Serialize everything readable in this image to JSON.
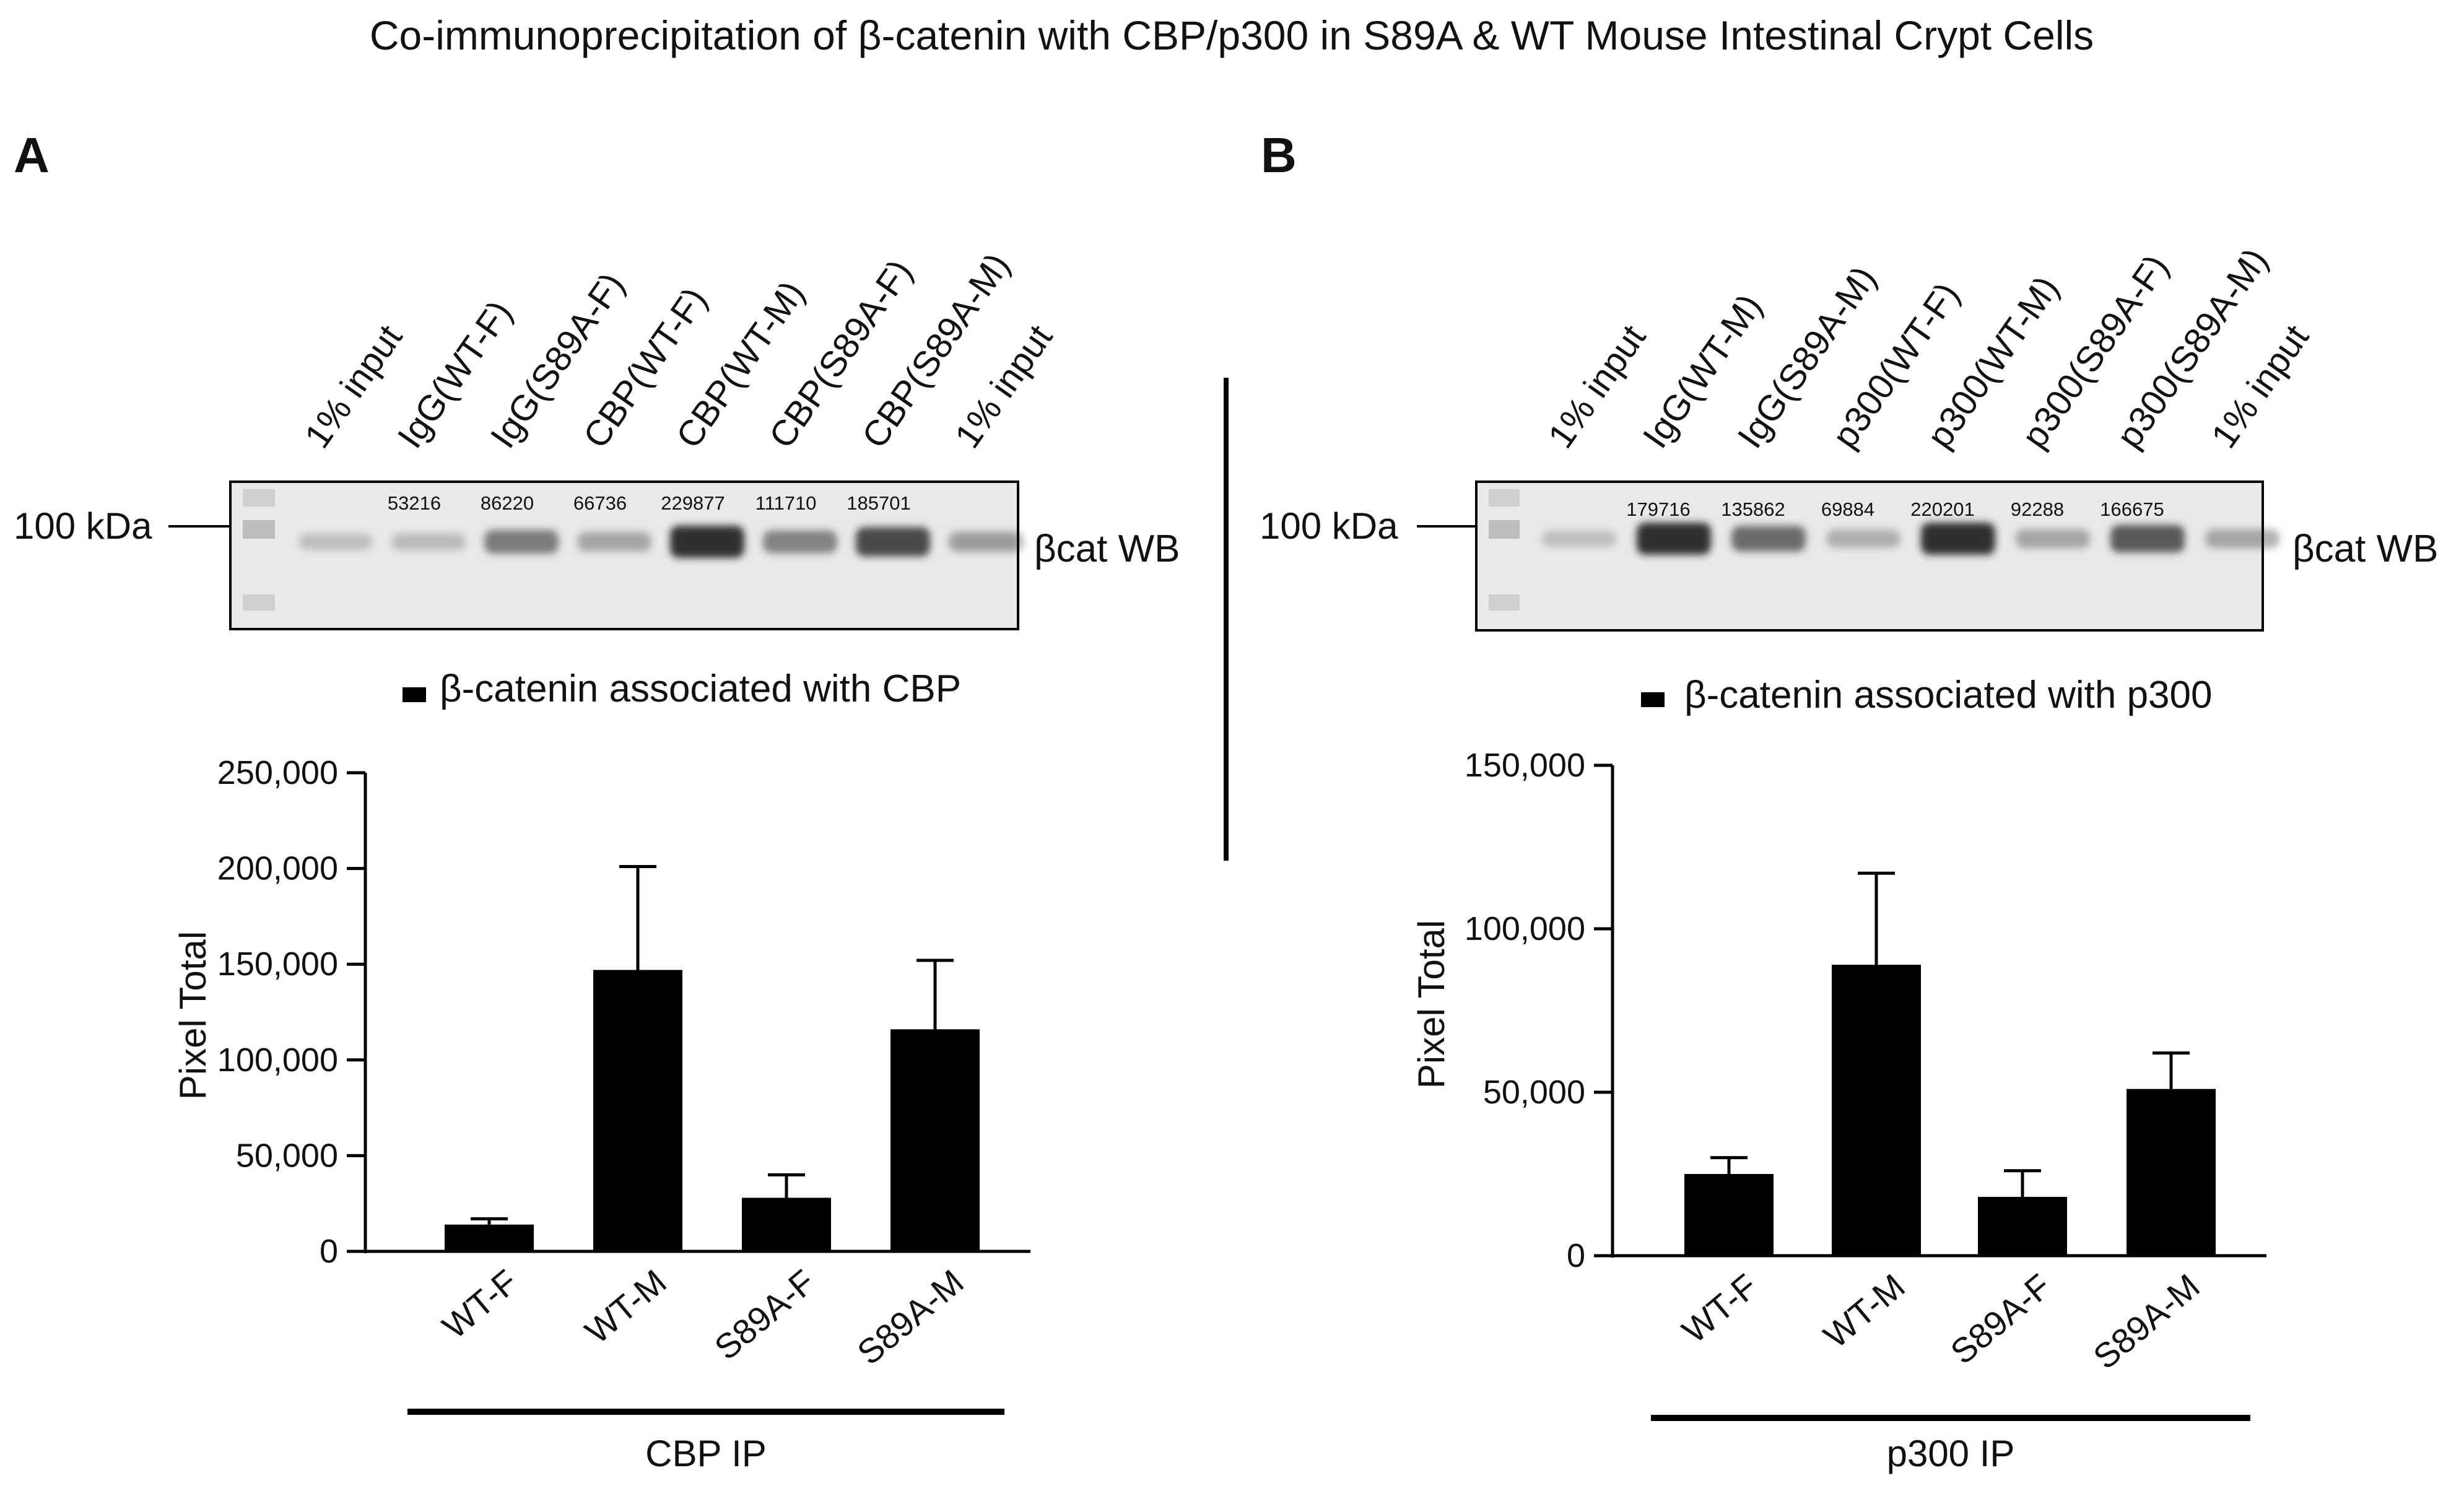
{
  "title": "Co-immunoprecipitation of β-catenin with CBP/p300 in S89A & WT Mouse Intestinal Crypt Cells",
  "colors": {
    "bar": "#000000",
    "blot_bg": "#e9e9e9",
    "band": "#222222"
  },
  "panels": [
    {
      "letter": "A",
      "lanes": [
        "1% input",
        "IgG(WT-F)",
        "IgG(S89A-F)",
        "CBP(WT-F)",
        "CBP(WT-M)",
        "CBP(S89A-F)",
        "CBP(S89A-M)",
        "1% input"
      ],
      "lane_values": [
        "53216",
        "86220",
        "66736",
        "229877",
        "111710",
        "185701"
      ],
      "band_intensity": [
        0.15,
        0.18,
        0.55,
        0.3,
        1.0,
        0.5,
        0.85,
        0.35
      ],
      "marker_label": "100 kDa",
      "wb_label": "βcat WB",
      "legend_label": "β-catenin associated with CBP",
      "ip_label": "CBP IP"
    },
    {
      "letter": "B",
      "lanes": [
        "1% input",
        "IgG(WT-M)",
        "IgG(S89A-M)",
        "p300(WT-F)",
        "p300(WT-M)",
        "p300(S89A-F)",
        "p300(S89A-M)",
        "1% input"
      ],
      "lane_values": [
        "179716",
        "135862",
        "69884",
        "220201",
        "92288",
        "166675"
      ],
      "band_intensity": [
        0.15,
        1.0,
        0.65,
        0.25,
        1.0,
        0.3,
        0.75,
        0.3
      ],
      "marker_label": "100 kDa",
      "wb_label": "βcat WB",
      "legend_label": "β-catenin associated with p300",
      "ip_label": "p300 IP"
    }
  ],
  "chart_data": [
    {
      "type": "bar",
      "title": "β-catenin associated with CBP",
      "categories": [
        "WT-F",
        "WT-M",
        "S89A-F",
        "S89A-M"
      ],
      "values": [
        14000,
        147000,
        28000,
        116000
      ],
      "errors": [
        3000,
        54000,
        12000,
        36000
      ],
      "ylabel": "Pixel  Total",
      "xlabel": "CBP IP",
      "ylim": [
        0,
        250000
      ],
      "yticks": [
        0,
        50000,
        100000,
        150000,
        200000,
        250000
      ],
      "ytick_labels": [
        "0",
        "50,000",
        "100,000",
        "150,000",
        "200,000",
        "250,000"
      ]
    },
    {
      "type": "bar",
      "title": "β-catenin associated with p300",
      "categories": [
        "WT-F",
        "WT-M",
        "S89A-F",
        "S89A-M"
      ],
      "values": [
        25000,
        89000,
        18000,
        51000
      ],
      "errors": [
        5000,
        28000,
        8000,
        11000
      ],
      "ylabel": "Pixel  Total",
      "xlabel": "p300 IP",
      "ylim": [
        0,
        150000
      ],
      "yticks": [
        0,
        50000,
        100000,
        150000
      ],
      "ytick_labels": [
        "0",
        "50,000",
        "100,000",
        "150,000"
      ]
    }
  ]
}
